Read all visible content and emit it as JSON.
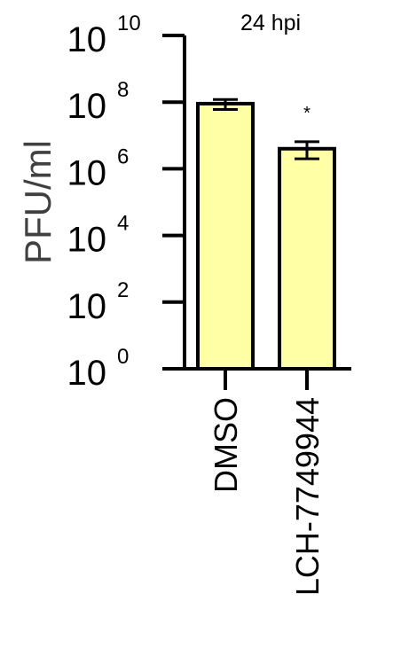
{
  "chart_data": {
    "type": "bar",
    "title": "24 hpi",
    "ylabel": "PFU/ml",
    "xlabel": "",
    "yscale": "log10",
    "ylim": [
      1,
      10000000000
    ],
    "yticks": [
      {
        "base": "10",
        "exp": "0",
        "value": 1
      },
      {
        "base": "10",
        "exp": "2",
        "value": 100
      },
      {
        "base": "10",
        "exp": "4",
        "value": 10000
      },
      {
        "base": "10",
        "exp": "6",
        "value": 1000000
      },
      {
        "base": "10",
        "exp": "8",
        "value": 100000000
      },
      {
        "base": "10",
        "exp": "10",
        "value": 10000000000
      }
    ],
    "categories": [
      "DMSO",
      "LCH-7749944"
    ],
    "values": [
      90000000,
      4000000
    ],
    "error_low": [
      60000000,
      2000000
    ],
    "error_high": [
      120000000,
      6500000
    ],
    "annotations": [
      "",
      "*"
    ],
    "bar_color": "#FFFFA6",
    "edge_color": "#000000"
  }
}
